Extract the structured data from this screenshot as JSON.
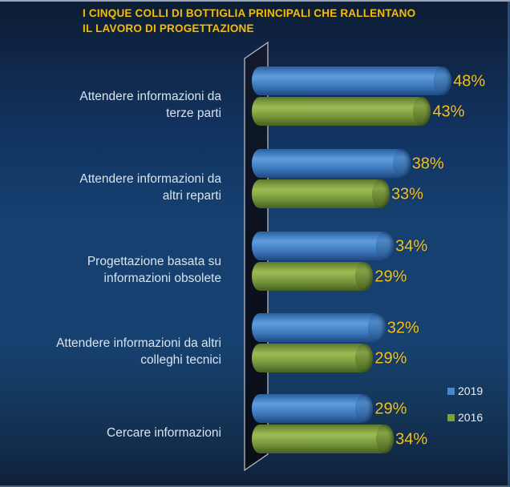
{
  "chart_data": {
    "type": "bar",
    "orientation": "horizontal",
    "title": "I CINQUE COLLI DI BOTTIGLIA PRINCIPALI CHE RALLENTANO\nIL LAVORO DI PROGETTAZIONE",
    "categories": [
      "Attendere informazioni da\nterze parti",
      "Attendere informazioni da\naltri reparti",
      "Progettazione basata su\ninformazioni obsolete",
      "Attendere informazioni da altri\ncolleghi tecnici",
      "Cercare informazioni"
    ],
    "series": [
      {
        "name": "2019",
        "color": "#3f7fc2",
        "values": [
          48,
          38,
          34,
          32,
          29
        ],
        "labels": [
          "48%",
          "38%",
          "34%",
          "32%",
          "29%"
        ]
      },
      {
        "name": "2016",
        "color": "#82a23f",
        "values": [
          43,
          33,
          29,
          29,
          34
        ],
        "labels": [
          "43%",
          "33%",
          "29%",
          "29%",
          "34%"
        ]
      }
    ],
    "unit": "%",
    "xlim": [
      0,
      52
    ],
    "grid": false,
    "legend_position": "bottom-right"
  },
  "colors": {
    "background_navy": "#154070",
    "title_yellow": "#eebc12",
    "value_label_yellow": "#f1c21e",
    "category_text": "#d9e3ef",
    "bar_blue_2019": "#3f7fc2",
    "bar_green_2016": "#82a23f",
    "wall_black": "#0b0f1a",
    "wall_edge_gray": "#b2bac6"
  }
}
